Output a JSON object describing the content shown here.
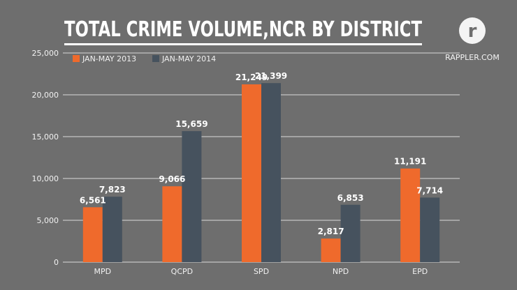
{
  "chart_data": {
    "type": "bar",
    "title": "TOTAL CRIME VOLUME,NCR BY DISTRICT",
    "categories": [
      "MPD",
      "QCPD",
      "SPD",
      "NPD",
      "EPD"
    ],
    "series": [
      {
        "name": "JAN-MAY 2013",
        "values": [
          6561,
          9066,
          21249,
          2817,
          11191
        ],
        "value_labels": [
          "6,561",
          "9,066",
          "21,249",
          "2,817",
          "11,191"
        ],
        "color": "#ef6a2c"
      },
      {
        "name": "JAN-MAY 2014",
        "values": [
          7823,
          15659,
          21399,
          6853,
          7714
        ],
        "value_labels": [
          "7,823",
          "15,659",
          "21,399",
          "6,853",
          "7,714"
        ],
        "color": "#46525e"
      }
    ],
    "ylim": [
      0,
      25000
    ],
    "yticks": [
      0,
      5000,
      10000,
      15000,
      20000,
      25000
    ],
    "ytick_labels": [
      "0",
      "5,000",
      "10,000",
      "15,000",
      "20,000",
      "25,000"
    ],
    "grid": true,
    "legend_position": "top-left",
    "gridline_color": "#d9d9d9"
  },
  "branding": {
    "name": "RAPPLER.COM",
    "logo_letter": "r"
  },
  "colors": {
    "background": "#6e6e6e",
    "title": "#ffffff"
  }
}
